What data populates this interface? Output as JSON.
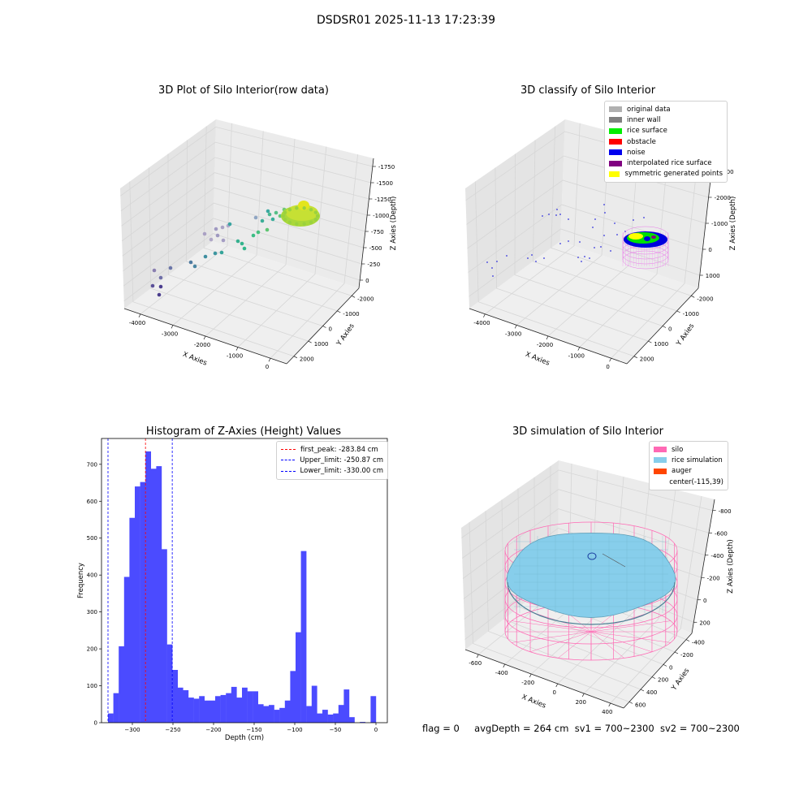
{
  "figure": {
    "suptitle": "DSDSR01 2025-11-13 17:23:39",
    "footer": {
      "flag": "flag = 0",
      "avg_depth": "avgDepth = 264 cm",
      "sv1": "sv1 = 700~2300",
      "sv2": "sv2 = 700~2300"
    }
  },
  "panels": {
    "raw": {
      "title": "3D Plot of Silo Interior(row data)",
      "xlabel": "X Axies",
      "ylabel": "Y Axies",
      "zlabel": "Z Axies (Depth)",
      "xticks": [
        "-4000",
        "-3000",
        "-2000",
        "-1000",
        "0"
      ],
      "yticks": [
        "-2000",
        "-1000",
        "0",
        "1000",
        "2000"
      ],
      "zticks": [
        "0",
        "-250",
        "-500",
        "-750",
        "-1000",
        "-1250",
        "-1500",
        "-1750"
      ]
    },
    "classify": {
      "title": "3D classify of Silo Interior",
      "xlabel": "X Axies",
      "ylabel": "Y Axies",
      "zlabel": "Z Axies (Depth)",
      "xticks": [
        "-4000",
        "-3000",
        "-2000",
        "-1000",
        "0"
      ],
      "yticks": [
        "-2000",
        "-1000",
        "0",
        "1000",
        "2000"
      ],
      "zticks": [
        "1000",
        "0",
        "-1000",
        "-2000",
        "-3000"
      ],
      "legend": [
        {
          "label": "original data",
          "color": "#b0b0b0"
        },
        {
          "label": "inner wall",
          "color": "#808080"
        },
        {
          "label": "rice surface",
          "color": "#00ee00"
        },
        {
          "label": "obstacle",
          "color": "#ff0000"
        },
        {
          "label": "noise",
          "color": "#0000ee"
        },
        {
          "label": "interpolated rice surface",
          "color": "#800080"
        },
        {
          "label": "symmetric generated points",
          "color": "#ffff00"
        }
      ]
    },
    "simulation": {
      "title": "3D simulation of Silo Interior",
      "xlabel": "X Axies",
      "ylabel": "Y Axies",
      "zlabel": "Z Axies (Depth)",
      "xticks": [
        "-600",
        "-400",
        "-200",
        "0",
        "200",
        "400"
      ],
      "yticks": [
        "-400",
        "-200",
        "0",
        "200",
        "400",
        "600"
      ],
      "zticks": [
        "200",
        "0",
        "-200",
        "-400",
        "-600",
        "-800"
      ],
      "legend": [
        {
          "label": "silo",
          "color": "#ff69b4"
        },
        {
          "label": "rice simulation",
          "color": "#87ceeb"
        },
        {
          "label": "auger",
          "color": "#ff4500"
        },
        {
          "label": "center(-115,39)",
          "color": ""
        }
      ]
    }
  },
  "chart_data": {
    "type": "bar",
    "title": "Histogram of Z-Axies (Height) Values",
    "xlabel": "Depth (cm)",
    "ylabel": "Frequency",
    "xlim": [
      -338,
      14
    ],
    "ylim": [
      0,
      770
    ],
    "xticks": [
      -300,
      -250,
      -200,
      -150,
      -100,
      -50,
      0
    ],
    "yticks": [
      0,
      100,
      200,
      300,
      400,
      500,
      600,
      700
    ],
    "bar_color": "#4b4bff",
    "bin_start": -330,
    "bin_width": 6.6,
    "values": [
      25,
      80,
      207,
      395,
      555,
      640,
      652,
      735,
      688,
      695,
      470,
      212,
      143,
      95,
      88,
      68,
      65,
      72,
      60,
      60,
      72,
      75,
      80,
      97,
      68,
      95,
      85,
      85,
      50,
      45,
      48,
      35,
      40,
      60,
      140,
      245,
      465,
      45,
      100,
      25,
      35,
      22,
      25,
      48,
      90,
      15,
      0,
      2,
      0,
      72
    ],
    "lines": [
      {
        "label": "first_peak: -283.84 cm",
        "x": -283.84,
        "color": "#ff0000"
      },
      {
        "label": "Upper_limit: -250.87 cm",
        "x": -250.87,
        "color": "#0000ff"
      },
      {
        "label": "Lower_limit: -330.00 cm",
        "x": -330.0,
        "color": "#0000ff"
      }
    ]
  }
}
